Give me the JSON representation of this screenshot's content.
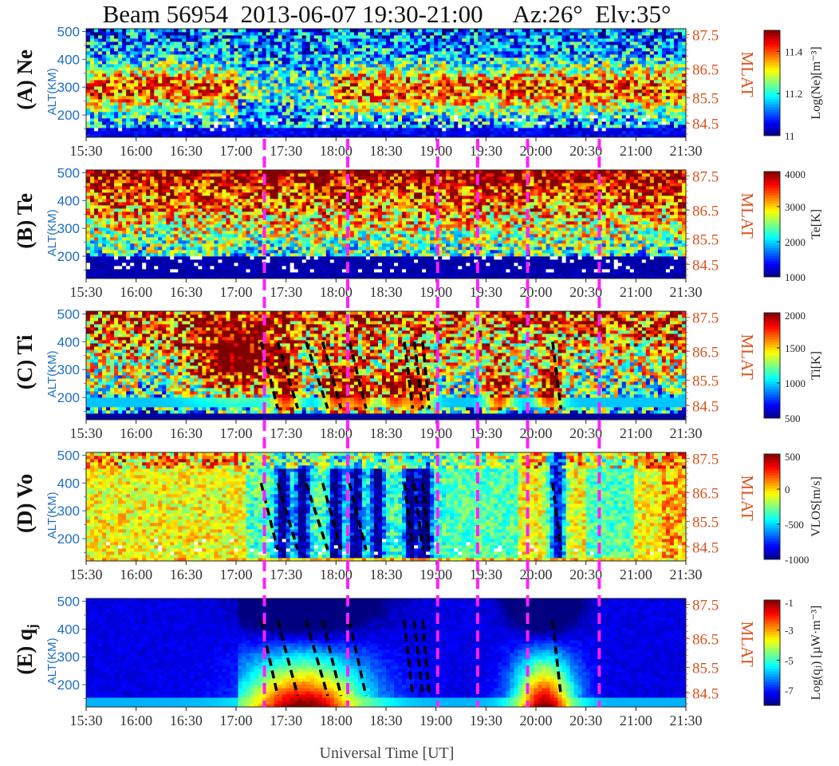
{
  "title": "Beam 56954  2013-06-07 19:30-21:00     Az:26°  Elv:35°",
  "xlabel": "Universal Time [UT]",
  "colors": {
    "left_axis": "#1f6fc0",
    "right_axis": "#d9531e",
    "event_lines": "#ff1fff",
    "fit_lines": "#000000"
  },
  "chart_data": {
    "type": "heatmap",
    "x_range": [
      "15:30",
      "21:30"
    ],
    "x_ticks": [
      "15:30",
      "16:00",
      "16:30",
      "17:00",
      "17:30",
      "18:00",
      "18:30",
      "19:00",
      "19:30",
      "20:00",
      "20:30",
      "21:00",
      "21:30"
    ],
    "left_axis": {
      "label": "ALT(KM)",
      "range": [
        120,
        510
      ],
      "ticks": [
        "200",
        "300",
        "400",
        "500"
      ]
    },
    "right_axis": {
      "label": "MLAT",
      "ticks": [
        "84.5",
        "85.5",
        "86.5",
        "87.5"
      ]
    },
    "event_lines_ut": [
      "17:17",
      "18:07",
      "19:01",
      "19:25",
      "19:55",
      "20:38"
    ],
    "panels": [
      {
        "id": "A",
        "tag": "(A) Ne",
        "colorbar_label": "Log(Ne)[m⁻³]",
        "colorbar_ticks": [
          "11",
          "11.2",
          "11.4"
        ],
        "colorbar_range": [
          11,
          11.5
        ],
        "fit_lines": []
      },
      {
        "id": "B",
        "tag": "(B) Te",
        "colorbar_label": "Te[K]",
        "colorbar_ticks": [
          "1000",
          "2000",
          "3000",
          "4000"
        ],
        "colorbar_range": [
          1000,
          4000
        ],
        "fit_lines": []
      },
      {
        "id": "C",
        "tag": "(C) Ti",
        "colorbar_label": "Ti[K]",
        "colorbar_ticks": [
          "500",
          "1000",
          "1500",
          "2000"
        ],
        "colorbar_range": [
          500,
          2000
        ],
        "fit_lines": [
          {
            "t": [
              "17:15",
              "17:25"
            ],
            "alt": [
              400,
              160
            ]
          },
          {
            "t": [
              "17:25",
              "17:37"
            ],
            "alt": [
              400,
              160
            ]
          },
          {
            "t": [
              "17:42",
              "17:55"
            ],
            "alt": [
              400,
              160
            ]
          },
          {
            "t": [
              "17:52",
              "18:03"
            ],
            "alt": [
              400,
              160
            ]
          },
          {
            "t": [
              "18:08",
              "18:18"
            ],
            "alt": [
              400,
              160
            ]
          },
          {
            "t": [
              "18:41",
              "18:46"
            ],
            "alt": [
              400,
              160
            ]
          },
          {
            "t": [
              "18:47",
              "18:52"
            ],
            "alt": [
              400,
              160
            ]
          },
          {
            "t": [
              "18:52",
              "18:56"
            ],
            "alt": [
              400,
              160
            ]
          },
          {
            "t": [
              "20:10",
              "20:15"
            ],
            "alt": [
              400,
              160
            ]
          }
        ]
      },
      {
        "id": "D",
        "tag": "(D) Vo",
        "colorbar_label": "VLOS[m/s]",
        "colorbar_ticks": [
          "-1000",
          "-500",
          "0",
          "500"
        ],
        "colorbar_range": [
          -1000,
          500
        ],
        "fit_lines": [
          {
            "t": [
              "17:15",
              "17:25"
            ],
            "alt": [
              400,
              160
            ]
          },
          {
            "t": [
              "17:25",
              "17:37"
            ],
            "alt": [
              400,
              160
            ]
          },
          {
            "t": [
              "17:42",
              "17:55"
            ],
            "alt": [
              400,
              160
            ]
          },
          {
            "t": [
              "17:52",
              "18:03"
            ],
            "alt": [
              400,
              160
            ]
          },
          {
            "t": [
              "18:08",
              "18:18"
            ],
            "alt": [
              400,
              160
            ]
          },
          {
            "t": [
              "18:41",
              "18:46"
            ],
            "alt": [
              400,
              160
            ]
          },
          {
            "t": [
              "18:47",
              "18:52"
            ],
            "alt": [
              400,
              160
            ]
          },
          {
            "t": [
              "18:52",
              "18:56"
            ],
            "alt": [
              400,
              160
            ]
          },
          {
            "t": [
              "20:10",
              "20:15"
            ],
            "alt": [
              400,
              160
            ]
          }
        ]
      },
      {
        "id": "E",
        "tag": "(E) q",
        "tag_sub": "j",
        "colorbar_label": "Log(qⱼ) [µW·m⁻³]",
        "colorbar_ticks": [
          "-7",
          "-5",
          "-3",
          "-1"
        ],
        "colorbar_range": [
          -8,
          -1
        ],
        "fit_lines": [
          {
            "t": [
              "17:15",
              "17:25"
            ],
            "alt": [
              430,
              160
            ]
          },
          {
            "t": [
              "17:25",
              "17:37"
            ],
            "alt": [
              430,
              160
            ]
          },
          {
            "t": [
              "17:42",
              "17:55"
            ],
            "alt": [
              430,
              160
            ]
          },
          {
            "t": [
              "17:52",
              "18:03"
            ],
            "alt": [
              430,
              160
            ]
          },
          {
            "t": [
              "18:08",
              "18:18"
            ],
            "alt": [
              430,
              160
            ]
          },
          {
            "t": [
              "18:41",
              "18:46"
            ],
            "alt": [
              430,
              160
            ]
          },
          {
            "t": [
              "18:47",
              "18:52"
            ],
            "alt": [
              430,
              160
            ]
          },
          {
            "t": [
              "18:52",
              "18:56"
            ],
            "alt": [
              430,
              160
            ]
          },
          {
            "t": [
              "20:10",
              "20:15"
            ],
            "alt": [
              430,
              160
            ]
          }
        ]
      }
    ]
  }
}
